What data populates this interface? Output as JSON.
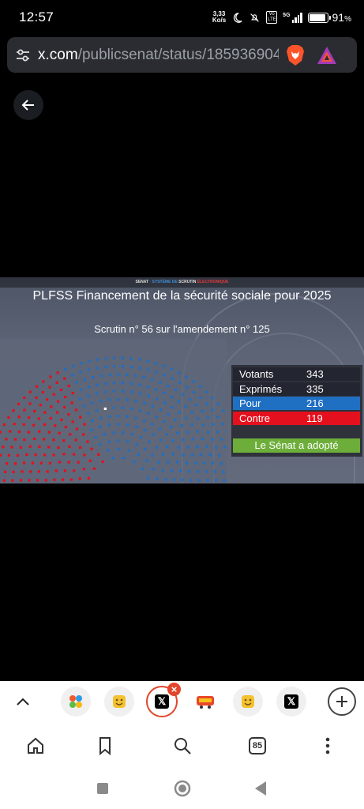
{
  "status_bar": {
    "time": "12:57",
    "net_speed_value": "3,33",
    "net_speed_unit": "Ko/s",
    "battery": "91",
    "battery_unit": "%",
    "network": "5G",
    "volte": "Vo LTE"
  },
  "browser": {
    "url_host": "x.com",
    "url_path": "/publicsenat/status/185936904"
  },
  "video": {
    "header_part1": "SENAT",
    "header_part2": " · SYSTÈME DE ",
    "header_part3": "SCRUTIN ",
    "header_part4": "ÉLECTRONIQUE",
    "title": "PLFSS Financement de la sécurité sociale pour 2025",
    "subtitle": "Scrutin n° 56 sur l'amendement n°  125",
    "results": {
      "votants_label": "Votants",
      "votants": "343",
      "exprimes_label": "Exprimés",
      "exprimes": "335",
      "pour_label": "Pour",
      "pour": "216",
      "contre_label": "Contre",
      "contre": "119",
      "outcome": "Le Sénat a adopté"
    },
    "colors": {
      "pour": "#1f6fc3",
      "contre": "#e4101d",
      "abstention": "#ffffff",
      "outcome": "#6dae3a"
    }
  },
  "tabs": [
    {
      "icon": "gallery-app-icon"
    },
    {
      "icon": "smiley-icon"
    },
    {
      "icon": "x-icon",
      "glyph": "𝕏",
      "active": true
    },
    {
      "icon": "sticker-icon"
    },
    {
      "icon": "smiley-icon"
    },
    {
      "icon": "x-icon",
      "glyph": "𝕏"
    }
  ],
  "nav": {
    "tab_count": "85"
  }
}
